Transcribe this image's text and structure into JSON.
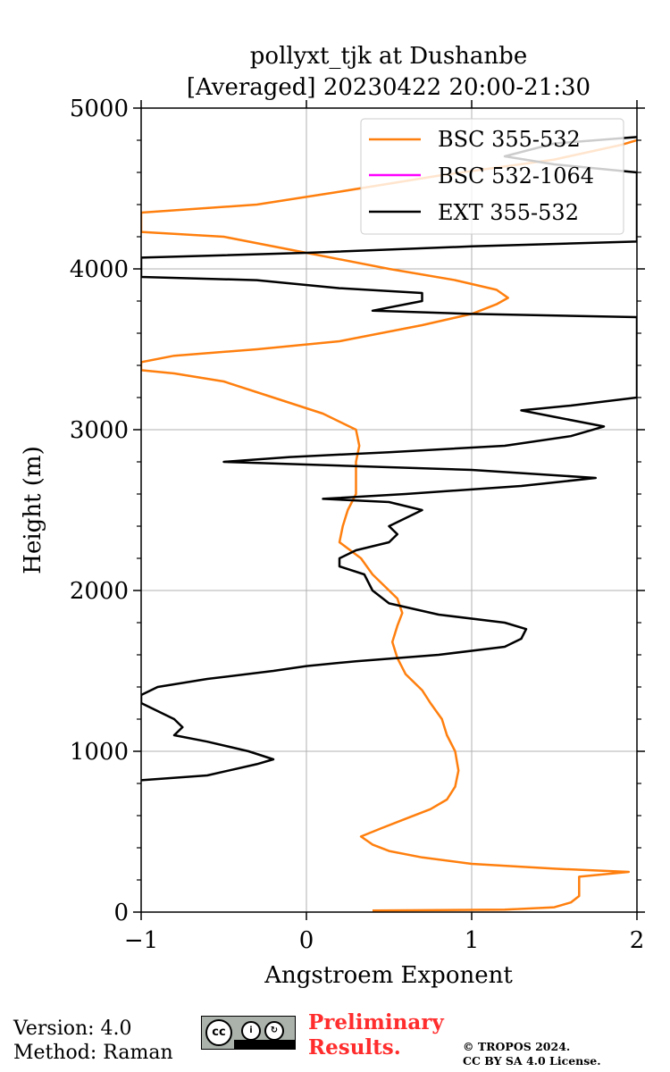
{
  "chart_data": {
    "type": "line",
    "title": [
      "pollyxt_tjk at Dushanbe",
      "[Averaged] 20230422 20:00-21:30"
    ],
    "xlabel": "Angstroem Exponent",
    "ylabel": "Height (m)",
    "xlim": [
      -1,
      2
    ],
    "ylim": [
      0,
      5000
    ],
    "xticks": [
      -1,
      0,
      1,
      2
    ],
    "xtick_labels": [
      "−1",
      "0",
      "1",
      "2"
    ],
    "yticks": [
      0,
      1000,
      2000,
      3000,
      4000,
      5000
    ],
    "ytick_labels": [
      "0",
      "1000",
      "2000",
      "3000",
      "4000",
      "5000"
    ],
    "grid": true,
    "legend_position": "upper right",
    "series": [
      {
        "name": "BSC 355-532",
        "color": "#ff7f0e",
        "points": [
          [
            0.4,
            10
          ],
          [
            1.2,
            15
          ],
          [
            1.5,
            30
          ],
          [
            1.6,
            60
          ],
          [
            1.65,
            100
          ],
          [
            1.65,
            160
          ],
          [
            1.65,
            220
          ],
          [
            1.95,
            250
          ],
          [
            1.5,
            270
          ],
          [
            1.0,
            300
          ],
          [
            0.7,
            340
          ],
          [
            0.5,
            380
          ],
          [
            0.4,
            420
          ],
          [
            0.33,
            470
          ],
          [
            0.45,
            520
          ],
          [
            0.6,
            580
          ],
          [
            0.75,
            640
          ],
          [
            0.85,
            700
          ],
          [
            0.9,
            780
          ],
          [
            0.92,
            880
          ],
          [
            0.9,
            1000
          ],
          [
            0.85,
            1100
          ],
          [
            0.82,
            1200
          ],
          [
            0.75,
            1300
          ],
          [
            0.7,
            1380
          ],
          [
            0.6,
            1480
          ],
          [
            0.55,
            1580
          ],
          [
            0.52,
            1680
          ],
          [
            0.55,
            1780
          ],
          [
            0.58,
            1860
          ],
          [
            0.55,
            1950
          ],
          [
            0.4,
            2100
          ],
          [
            0.33,
            2200
          ],
          [
            0.2,
            2300
          ],
          [
            0.22,
            2400
          ],
          [
            0.25,
            2500
          ],
          [
            0.3,
            2600
          ],
          [
            0.3,
            2700
          ],
          [
            0.3,
            2800
          ],
          [
            0.32,
            2900
          ],
          [
            0.3,
            3000
          ],
          [
            0.1,
            3100
          ],
          [
            -0.2,
            3200
          ],
          [
            -0.5,
            3300
          ],
          [
            -0.8,
            3350
          ],
          [
            -1.0,
            3370
          ],
          [
            -1.0,
            3420
          ],
          [
            -0.8,
            3460
          ],
          [
            -0.3,
            3500
          ],
          [
            0.2,
            3550
          ],
          [
            0.7,
            3650
          ],
          [
            1.0,
            3720
          ],
          [
            1.15,
            3780
          ],
          [
            1.22,
            3820
          ],
          [
            1.15,
            3870
          ],
          [
            0.9,
            3930
          ],
          [
            0.5,
            4000
          ],
          [
            0.0,
            4100
          ],
          [
            -0.5,
            4200
          ],
          [
            -1.0,
            4230
          ],
          [
            -1.0,
            4350
          ],
          [
            -0.3,
            4400
          ],
          [
            0.2,
            4480
          ],
          [
            0.8,
            4580
          ],
          [
            1.5,
            4680
          ],
          [
            1.9,
            4770
          ],
          [
            2.0,
            4800
          ]
        ]
      },
      {
        "name": "BSC 532-1064",
        "color": "#ff00ff",
        "points": []
      },
      {
        "name": "EXT 355-532",
        "color": "#000000",
        "points": [
          [
            -1.0,
            820
          ],
          [
            -0.6,
            850
          ],
          [
            -0.3,
            920
          ],
          [
            -0.2,
            950
          ],
          [
            -0.35,
            1000
          ],
          [
            -0.6,
            1060
          ],
          [
            -0.8,
            1100
          ],
          [
            -0.75,
            1150
          ],
          [
            -0.8,
            1200
          ],
          [
            -0.9,
            1250
          ],
          [
            -1.0,
            1300
          ],
          [
            -1.0,
            1350
          ],
          [
            -0.9,
            1400
          ],
          [
            -0.6,
            1450
          ],
          [
            -0.2,
            1500
          ],
          [
            0.0,
            1530
          ],
          [
            0.3,
            1560
          ],
          [
            0.8,
            1600
          ],
          [
            1.2,
            1650
          ],
          [
            1.3,
            1700
          ],
          [
            1.33,
            1760
          ],
          [
            1.2,
            1800
          ],
          [
            0.8,
            1850
          ],
          [
            0.5,
            1920
          ],
          [
            0.4,
            2000
          ],
          [
            0.35,
            2100
          ],
          [
            0.2,
            2150
          ],
          [
            0.2,
            2200
          ],
          [
            0.3,
            2250
          ],
          [
            0.5,
            2300
          ],
          [
            0.55,
            2350
          ],
          [
            0.5,
            2400
          ],
          [
            0.6,
            2450
          ],
          [
            0.7,
            2500
          ],
          [
            0.5,
            2550
          ],
          [
            0.1,
            2570
          ],
          [
            0.6,
            2600
          ],
          [
            1.3,
            2650
          ],
          [
            1.75,
            2700
          ],
          [
            1.0,
            2750
          ],
          [
            -0.5,
            2800
          ],
          [
            -0.1,
            2830
          ],
          [
            0.5,
            2860
          ],
          [
            1.2,
            2900
          ],
          [
            1.6,
            2960
          ],
          [
            1.8,
            3020
          ],
          [
            1.5,
            3080
          ],
          [
            1.3,
            3120
          ],
          [
            1.6,
            3150
          ],
          [
            2.0,
            3200
          ],
          [
            2.0,
            3700
          ],
          [
            1.0,
            3720
          ],
          [
            0.4,
            3740
          ],
          [
            0.7,
            3800
          ],
          [
            0.7,
            3850
          ],
          [
            0.2,
            3880
          ],
          [
            -0.3,
            3930
          ],
          [
            -1.0,
            3950
          ],
          [
            -1.0,
            4070
          ],
          [
            0.0,
            4100
          ],
          [
            1.0,
            4140
          ],
          [
            2.0,
            4170
          ],
          [
            2.0,
            4600
          ],
          [
            1.5,
            4650
          ],
          [
            1.2,
            4700
          ],
          [
            1.5,
            4780
          ],
          [
            2.0,
            4820
          ]
        ]
      }
    ]
  },
  "footer": {
    "version": "Version: 4.0",
    "method": "Method: Raman",
    "preliminary_line1": "Preliminary",
    "preliminary_line2": "Results.",
    "cc_label": "cc",
    "cc_by": "BY",
    "cc_sa": "SA",
    "copyright_line1": "© TROPOS 2024.",
    "copyright_line2": "CC BY SA 4.0 License."
  }
}
